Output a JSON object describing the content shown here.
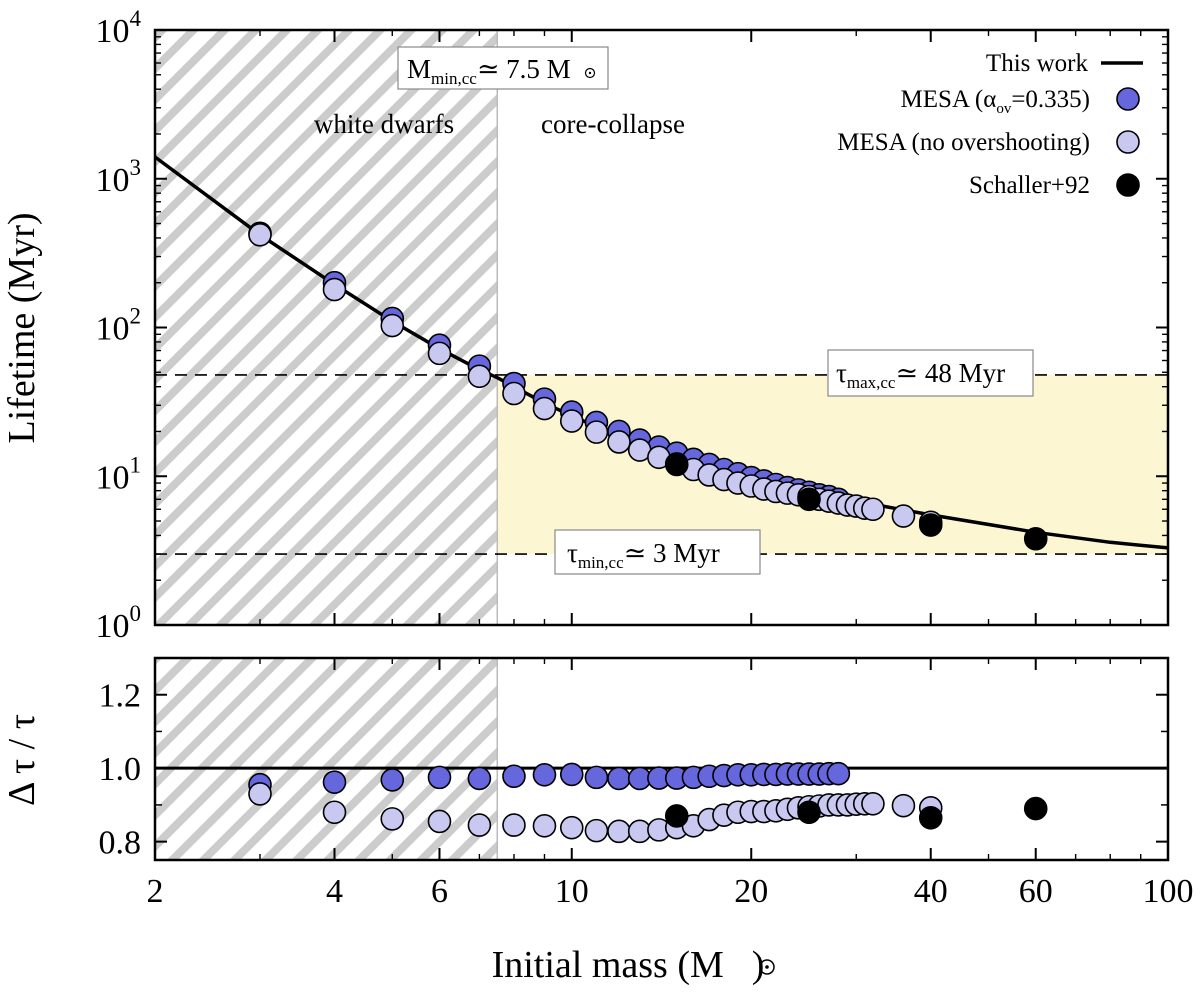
{
  "chart_data": {
    "type": "scatter",
    "x_scale": "log",
    "xlabel": "Initial mass (M",
    "xlabel_suffix": ")",
    "xlim": [
      2,
      100
    ],
    "x_ticks": [
      2,
      4,
      6,
      10,
      20,
      40,
      60,
      100
    ],
    "x_tick_labels": [
      "2",
      "4",
      "6",
      "10",
      "20",
      "40",
      "60",
      "100"
    ],
    "top": {
      "ylabel": "Lifetime (Myr)",
      "y_scale": "log",
      "ylim": [
        1,
        10000
      ],
      "y_tick_exponents": [
        "0",
        "1",
        "2",
        "3",
        "4"
      ],
      "y_tick_base": "10",
      "regions": {
        "white_dwarfs_label": "white dwarfs",
        "core_collapse_label": "core-collapse",
        "m_min_cc": 7.5,
        "tau_max_cc": 48,
        "tau_min_cc": 3
      },
      "annotations": {
        "m_min": {
          "main": "M",
          "sub": "min,cc",
          "rest": "≃ 7.5 M"
        },
        "tau_max": {
          "main": "τ",
          "sub": "max,cc",
          "rest": "≃ 48 Myr"
        },
        "tau_min": {
          "main": "τ",
          "sub": "min,cc",
          "rest": "≃ 3 Myr"
        }
      },
      "legend": [
        {
          "label": "This work",
          "marker": "line"
        },
        {
          "label_pre": "MESA (α",
          "label_sub": "ov",
          "label_post": "=0.335)",
          "marker": "circle",
          "color": "#6666dd"
        },
        {
          "label": "MESA (no overshooting)",
          "marker": "circle",
          "color": "#c8c8f0"
        },
        {
          "label": "Schaller+92",
          "marker": "circle",
          "color": "#000000"
        }
      ],
      "series": [
        {
          "name": "This work",
          "type": "line",
          "color": "#000000",
          "x": [
            2,
            3,
            4,
            5,
            6,
            7,
            7.5,
            8,
            9,
            10,
            12,
            15,
            20,
            25,
            30,
            40,
            60,
            80,
            100
          ],
          "y": [
            1400,
            420,
            195,
            110,
            72,
            52,
            46,
            40,
            31,
            25.5,
            18.5,
            13.5,
            9.8,
            7.9,
            6.8,
            5.5,
            4.2,
            3.6,
            3.3
          ]
        },
        {
          "name": "MESA (α_ov=0.335)",
          "color": "#6666dd",
          "x": [
            3,
            4,
            5,
            6,
            7,
            8,
            9,
            10,
            11,
            12,
            13,
            14,
            15,
            16,
            17,
            18,
            19,
            20,
            21,
            22,
            23,
            24,
            25,
            26,
            27,
            28
          ],
          "y": [
            430,
            200,
            115,
            76,
            55,
            42,
            33,
            27,
            23,
            20,
            17.5,
            15.7,
            14.3,
            13.0,
            12.0,
            11.1,
            10.4,
            9.8,
            9.3,
            8.8,
            8.4,
            8.1,
            7.8,
            7.5,
            7.3,
            7.0
          ]
        },
        {
          "name": "MESA (no overshooting)",
          "color": "#c8c8f0",
          "x": [
            3,
            4,
            5,
            6,
            7,
            8,
            9,
            10,
            11,
            12,
            13,
            14,
            15,
            16,
            17,
            18,
            19,
            20,
            21,
            22,
            23,
            24,
            25,
            26,
            27,
            28,
            29,
            30,
            31,
            32,
            36,
            40
          ],
          "y": [
            420,
            180,
            103,
            67,
            47,
            36,
            28.5,
            23.5,
            19.8,
            17.0,
            15.0,
            13.4,
            12.1,
            11.1,
            10.2,
            9.5,
            9.0,
            8.6,
            8.2,
            7.9,
            7.7,
            7.5,
            7.3,
            7.0,
            6.8,
            6.6,
            6.4,
            6.3,
            6.1,
            6.0,
            5.4,
            4.9
          ]
        },
        {
          "name": "Schaller+92",
          "color": "#000000",
          "x": [
            15,
            25,
            40,
            60
          ],
          "y": [
            12.0,
            7.0,
            4.7,
            3.8
          ]
        }
      ]
    },
    "bottom": {
      "ylabel": "Δ τ / τ",
      "ylim": [
        0.75,
        1.3
      ],
      "y_ticks": [
        0.8,
        1.0,
        1.2
      ],
      "y_tick_labels": [
        "0.8",
        "1.0",
        "1.2"
      ],
      "reference_line": 1.0,
      "series": [
        {
          "name": "MESA (α_ov=0.335)",
          "color": "#6666dd",
          "x": [
            3,
            4,
            5,
            6,
            7,
            8,
            9,
            10,
            11,
            12,
            13,
            14,
            15,
            16,
            17,
            18,
            19,
            20,
            21,
            22,
            23,
            24,
            25,
            26,
            27,
            28
          ],
          "y": [
            0.955,
            0.962,
            0.968,
            0.975,
            0.972,
            0.978,
            0.982,
            0.983,
            0.975,
            0.972,
            0.972,
            0.973,
            0.973,
            0.975,
            0.978,
            0.98,
            0.982,
            0.982,
            0.983,
            0.983,
            0.984,
            0.984,
            0.984,
            0.984,
            0.985,
            0.985
          ]
        },
        {
          "name": "MESA (no overshooting)",
          "color": "#c8c8f0",
          "x": [
            3,
            4,
            5,
            6,
            7,
            8,
            9,
            10,
            11,
            12,
            13,
            14,
            15,
            16,
            17,
            18,
            19,
            20,
            21,
            22,
            23,
            24,
            25,
            26,
            27,
            28,
            29,
            30,
            31,
            32,
            36,
            40
          ],
          "y": [
            0.93,
            0.88,
            0.862,
            0.855,
            0.845,
            0.845,
            0.843,
            0.838,
            0.83,
            0.828,
            0.828,
            0.832,
            0.838,
            0.843,
            0.86,
            0.872,
            0.88,
            0.882,
            0.882,
            0.884,
            0.888,
            0.892,
            0.895,
            0.897,
            0.9,
            0.9,
            0.9,
            0.902,
            0.903,
            0.903,
            0.898,
            0.892
          ]
        },
        {
          "name": "Schaller+92",
          "color": "#000000",
          "x": [
            15,
            25,
            40,
            60
          ],
          "y": [
            0.87,
            0.88,
            0.865,
            0.89
          ]
        }
      ]
    }
  }
}
